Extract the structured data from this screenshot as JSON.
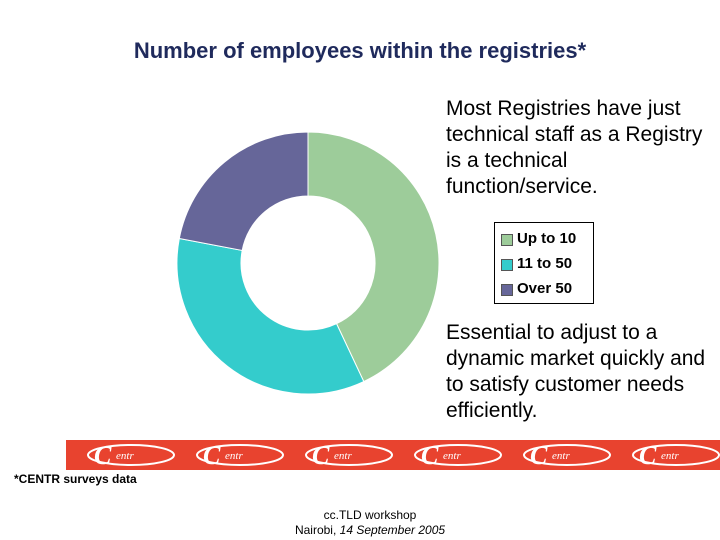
{
  "title": "Number of employees within the registries*",
  "note_top": "Most Registries have just technical staff as a Registry is a technical function/service.",
  "note_bottom": "Essential to adjust to a dynamic market quickly and to satisfy customer needs efficiently.",
  "footnote": "*CENTR surveys data",
  "footer": {
    "line1": "cc.TLD workshop",
    "place": "Nairobi,",
    "date": "14 September 2005"
  },
  "banner": {
    "logo_text": "entr",
    "color": "#e8432f"
  },
  "chart_data": {
    "type": "pie",
    "style": "donut",
    "title": "Number of employees within the registries*",
    "legend_position": "right",
    "categories": [
      "Up to 10",
      "11 to 50",
      "Over 50"
    ],
    "values": [
      43,
      35,
      22
    ],
    "colors": [
      "#9dcc9a",
      "#34cccc",
      "#666699"
    ]
  }
}
